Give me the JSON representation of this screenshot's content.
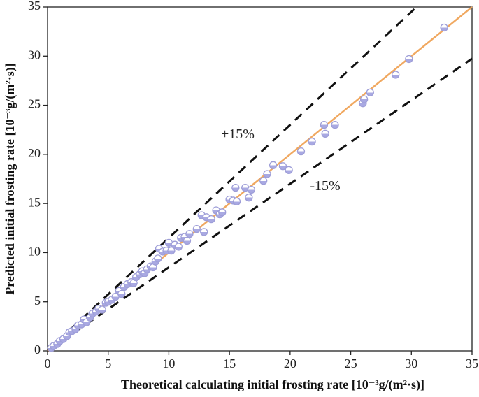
{
  "chart_data": {
    "type": "scatter",
    "x_label": "Theoretical calculating initial frosting rate [10⁻³g/(m²·s)]",
    "y_label": "Predicted initial frosting rate [10⁻³g/(m²·s)]",
    "xlim": [
      0,
      35
    ],
    "ylim": [
      0,
      35
    ],
    "xticks": [
      0,
      5,
      10,
      15,
      20,
      25,
      30,
      35
    ],
    "yticks": [
      0,
      5,
      10,
      15,
      20,
      25,
      30,
      35
    ],
    "marker_color": "#9e9ed8",
    "x": [
      0.3,
      0.5,
      0.8,
      1,
      1.3,
      1.6,
      1.8,
      2,
      2.3,
      2.5,
      2.8,
      3,
      3.2,
      3.5,
      3.7,
      4,
      4.2,
      4.5,
      4.8,
      5,
      5.3,
      5.6,
      5.9,
      6.1,
      6.3,
      6.6,
      6.9,
      7.1,
      7.3,
      7.6,
      7.8,
      8,
      8.2,
      8.5,
      8.7,
      8.9,
      9.1,
      9.2,
      9.5,
      9.8,
      10,
      10.2,
      10.5,
      10.8,
      11,
      11.3,
      11.5,
      11.7,
      12.3,
      12.7,
      12.9,
      13.1,
      13.5,
      13.9,
      14.2,
      14.4,
      15,
      15.3,
      15.5,
      15.6,
      16.3,
      16.6,
      16.8,
      17.8,
      18.1,
      18.6,
      19.4,
      19.9,
      20.9,
      21.8,
      22.8,
      22.9,
      23.7,
      26,
      26.1,
      26.6,
      28.7,
      29.8,
      32.7
    ],
    "values": [
      0.3,
      0.5,
      0.7,
      1,
      1.2,
      1.5,
      1.9,
      2,
      2.2,
      2.6,
      2.7,
      3.2,
      2.9,
      3.4,
      3.8,
      4,
      4.3,
      4.2,
      4.9,
      5,
      5.2,
      5.5,
      6.1,
      5.8,
      6.5,
      6.8,
      7,
      6.9,
      7.5,
      7.8,
      8.1,
      7.9,
      8.3,
      8.6,
      8.5,
      9.1,
      9.4,
      10.4,
      10.1,
      10.2,
      11,
      10.2,
      10.8,
      10.6,
      11.5,
      11.6,
      11.2,
      11.9,
      12.4,
      13.8,
      12.1,
      13.6,
      13.4,
      14.3,
      13.9,
      14.1,
      15.4,
      15.3,
      16.6,
      15.2,
      16.6,
      15.6,
      16.4,
      17.3,
      18,
      18.9,
      18.8,
      18.4,
      20.3,
      21.3,
      23,
      22.1,
      23,
      25.2,
      25.6,
      26.3,
      28.1,
      29.7,
      32.9
    ],
    "reference_lines": [
      {
        "x": [
          0,
          30.43
        ],
        "y": [
          0,
          35
        ],
        "color": "#111111",
        "dashed": true,
        "label": "+15%"
      },
      {
        "x": [
          0,
          35
        ],
        "y": [
          0,
          29.75
        ],
        "color": "#111111",
        "dashed": true,
        "label": "-15%"
      },
      {
        "x": [
          0,
          35
        ],
        "y": [
          0,
          35
        ],
        "color": "#f0a860",
        "dashed": false
      }
    ]
  }
}
